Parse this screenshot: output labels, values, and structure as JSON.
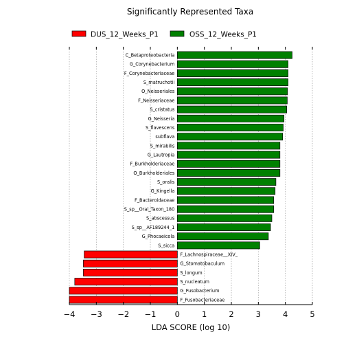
{
  "chart_data": {
    "type": "bar",
    "orientation": "horizontal",
    "title": "Significantly Represented Taxa",
    "xlabel": "LDA SCORE (log 10)",
    "ylabel": "",
    "xlim": [
      -4,
      5
    ],
    "xticks": [
      "−4",
      "−3",
      "−2",
      "−1",
      "0",
      "1",
      "2",
      "3",
      "4",
      "5"
    ],
    "xtick_values": [
      -4,
      -3,
      -2,
      -1,
      0,
      1,
      2,
      3,
      4,
      5
    ],
    "grid": "vertical dotted",
    "legend_position": "top",
    "series": [
      {
        "name": "DUS_12_Weeks_P1",
        "color": "#ff0000"
      },
      {
        "name": "OSS_12_Weeks_P1",
        "color": "#008000"
      }
    ],
    "categories": [
      "C_Betaproteobacteria",
      "G_Corynebacterium",
      "F_Corynebacteriaceae",
      "S_matruchotii",
      "O_Neisseriales",
      "F_Neisseriaceae",
      "S_cristatus",
      "G_Neisseria",
      "S_flavescens",
      "subflava",
      "S_mirabilis",
      "G_Lautropia",
      "F_Burkholderiaceae",
      "O_Burkholderiales",
      "S_oralis",
      "G_Kingella",
      "F_Bacteroidaceae",
      "S_sp__Oral_Taxon_180",
      "S_abscessus",
      "S_sp__AF189244_1",
      "G_Phocaeicola",
      "S_sicca",
      "F_Lachnospiraceae__XIV_",
      "G_Stomatobaculum",
      "S_longum",
      "S_nucleatum",
      "G_Fusobacterium",
      "F_Fusobacteriaceae"
    ],
    "values": [
      4.25,
      4.1,
      4.1,
      4.1,
      4.08,
      4.07,
      4.05,
      3.95,
      3.92,
      3.9,
      3.8,
      3.8,
      3.8,
      3.8,
      3.65,
      3.62,
      3.57,
      3.57,
      3.5,
      3.45,
      3.37,
      3.05,
      -3.45,
      -3.48,
      -3.48,
      -3.8,
      -4.0,
      -4.0
    ],
    "groups": [
      "OSS_12_Weeks_P1",
      "OSS_12_Weeks_P1",
      "OSS_12_Weeks_P1",
      "OSS_12_Weeks_P1",
      "OSS_12_Weeks_P1",
      "OSS_12_Weeks_P1",
      "OSS_12_Weeks_P1",
      "OSS_12_Weeks_P1",
      "OSS_12_Weeks_P1",
      "OSS_12_Weeks_P1",
      "OSS_12_Weeks_P1",
      "OSS_12_Weeks_P1",
      "OSS_12_Weeks_P1",
      "OSS_12_Weeks_P1",
      "OSS_12_Weeks_P1",
      "OSS_12_Weeks_P1",
      "OSS_12_Weeks_P1",
      "OSS_12_Weeks_P1",
      "OSS_12_Weeks_P1",
      "OSS_12_Weeks_P1",
      "OSS_12_Weeks_P1",
      "OSS_12_Weeks_P1",
      "DUS_12_Weeks_P1",
      "DUS_12_Weeks_P1",
      "DUS_12_Weeks_P1",
      "DUS_12_Weeks_P1",
      "DUS_12_Weeks_P1",
      "DUS_12_Weeks_P1"
    ]
  }
}
